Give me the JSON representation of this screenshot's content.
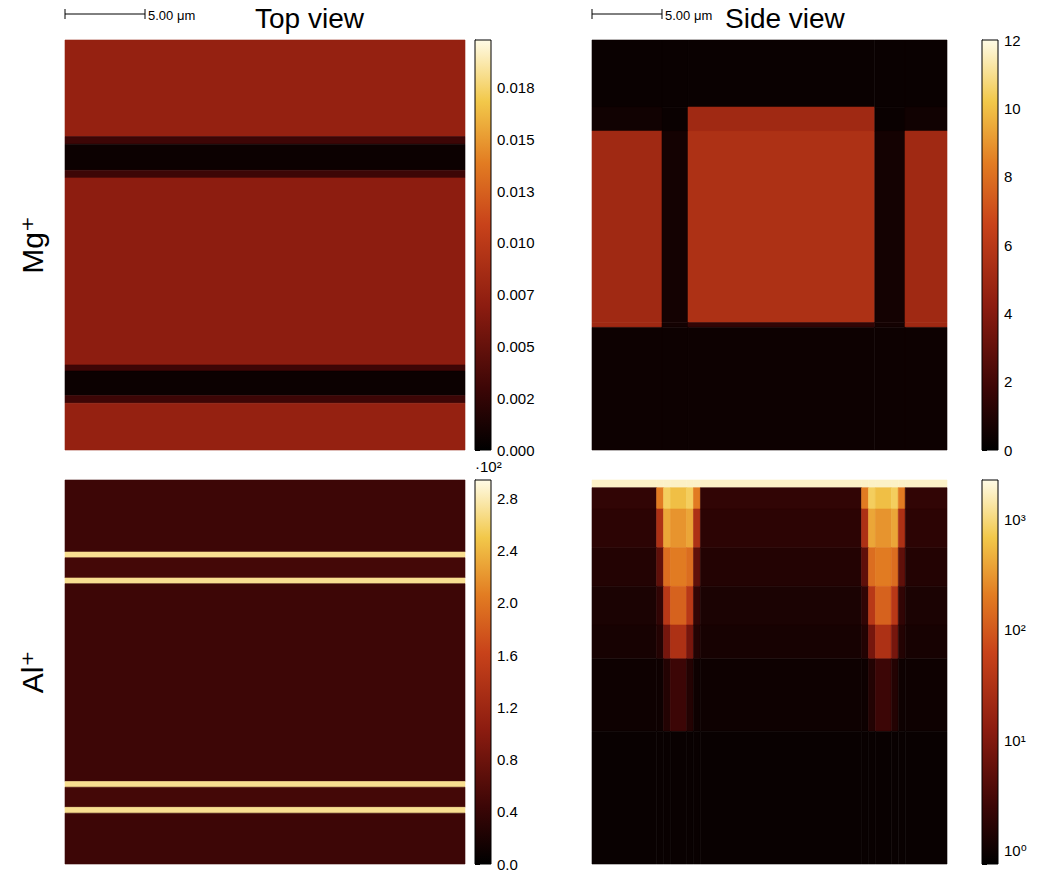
{
  "column_titles": [
    "Top view",
    "Side view"
  ],
  "row_titles": [
    "Mg⁺",
    "Al⁺"
  ],
  "scale_bar": {
    "label": "5.00 μm",
    "length": 5
  },
  "chart_data": [
    {
      "type": "heatmap",
      "tick_labels": false,
      "xlim": [
        0,
        25
      ],
      "ylim": [
        0,
        26.75
      ],
      "x_edges": [
        0,
        25
      ],
      "y_edges": [
        0,
        6.3,
        6.8,
        8.5,
        9.0,
        21.2,
        21.6,
        23.2,
        23.7,
        26.75
      ],
      "values": [
        [
          0.0075
        ],
        [
          0.003
        ],
        [
          0.0006
        ],
        [
          0.003
        ],
        [
          0.007
        ],
        [
          0.003
        ],
        [
          0.0006
        ],
        [
          0.003
        ],
        [
          0.0075
        ]
      ],
      "colorbar": {
        "range": [
          0,
          0.0198
        ],
        "ticks": [
          {
            "value": 0,
            "label": "0.000"
          },
          {
            "value": 0.0025,
            "label": "0.002"
          },
          {
            "value": 0.005,
            "label": "0.005"
          },
          {
            "value": 0.0075,
            "label": "0.007"
          },
          {
            "value": 0.01,
            "label": "0.010"
          },
          {
            "value": 0.0125,
            "label": "0.013"
          },
          {
            "value": 0.015,
            "label": "0.015"
          },
          {
            "value": 0.0175,
            "label": "0.018"
          }
        ]
      }
    },
    {
      "type": "heatmap",
      "tick_labels": false,
      "xlim": [
        0,
        25.36
      ],
      "ylim": [
        0,
        30.57
      ],
      "x_edges": [
        0,
        5.0,
        6.86,
        20.2,
        22.36,
        25.36
      ],
      "y_edges": [
        0,
        5.0,
        6.79,
        21.07,
        21.43,
        30.57
      ],
      "values": [
        [
          0.3,
          0.3,
          0.3,
          0.3,
          0.3
        ],
        [
          0.5,
          0.3,
          5,
          0.3,
          0.5
        ],
        [
          5,
          0.6,
          5.5,
          0.6,
          5
        ],
        [
          5,
          0.6,
          1.5,
          0.6,
          5
        ],
        [
          0.4,
          0.4,
          0.4,
          0.4,
          0.4
        ]
      ],
      "colorbar": {
        "range": [
          0,
          12
        ],
        "ticks": [
          0,
          2,
          4,
          6,
          8,
          10,
          12
        ]
      }
    },
    {
      "type": "heatmap",
      "tick_labels": false,
      "xlim": [
        0,
        25
      ],
      "ylim": [
        0,
        25
      ],
      "x_edges": [
        0,
        25
      ],
      "y_edges": [
        0,
        4.69,
        5.06,
        6.38,
        6.75,
        19.63,
        20.0,
        21.31,
        21.69,
        25
      ],
      "values": [
        [
          45
        ],
        [
          270
        ],
        [
          50
        ],
        [
          270
        ],
        [
          45
        ],
        [
          270
        ],
        [
          50
        ],
        [
          270
        ],
        [
          45
        ]
      ],
      "colorbar": {
        "range": [
          0,
          294
        ],
        "multiplier": "·10²",
        "ticks": [
          {
            "value": 0,
            "label": "0.0"
          },
          {
            "value": 40,
            "label": "0.4"
          },
          {
            "value": 80,
            "label": "0.8"
          },
          {
            "value": 120,
            "label": "1.2"
          },
          {
            "value": 160,
            "label": "1.6"
          },
          {
            "value": 200,
            "label": "2.0"
          },
          {
            "value": 240,
            "label": "2.4"
          },
          {
            "value": 280,
            "label": "2.8"
          }
        ]
      }
    },
    {
      "type": "heatmap",
      "tick_labels": false,
      "log": true,
      "xlim": [
        0,
        25.5
      ],
      "ylim": [
        0,
        28.36
      ],
      "x_edges": [
        0,
        4.64,
        5.14,
        5.64,
        6.79,
        7.29,
        7.79,
        19.36,
        19.86,
        20.36,
        21.5,
        22.0,
        22.5,
        25.5
      ],
      "y_edges": [
        0,
        0.57,
        2.14,
        5.0,
        7.86,
        10.71,
        13.21,
        18.57,
        28.36
      ],
      "values": [
        [
          1800,
          1800,
          1800,
          1800,
          1800,
          1800,
          1800,
          1800,
          1800,
          1800,
          1800,
          1800,
          1800
        ],
        [
          2,
          200,
          800,
          600,
          800,
          200,
          2,
          200,
          800,
          600,
          800,
          200,
          2
        ],
        [
          1.8,
          30,
          400,
          300,
          400,
          30,
          1.8,
          30,
          400,
          300,
          400,
          30,
          1.8
        ],
        [
          1.5,
          5,
          150,
          200,
          150,
          5,
          1.5,
          5,
          150,
          200,
          150,
          5,
          1.5
        ],
        [
          1.3,
          2,
          40,
          120,
          40,
          2,
          1.3,
          2,
          40,
          120,
          40,
          2,
          1.3
        ],
        [
          1.2,
          1.5,
          8,
          30,
          8,
          1.5,
          1.2,
          1.5,
          8,
          30,
          8,
          1.5,
          1.2
        ],
        [
          1,
          1,
          1.5,
          2.5,
          1.5,
          1,
          1,
          1,
          1.5,
          2.5,
          1.5,
          1,
          1
        ],
        [
          0.9,
          0.9,
          0.9,
          0.9,
          0.9,
          0.9,
          0.9,
          0.9,
          0.9,
          0.9,
          0.9,
          0.9,
          0.9
        ]
      ],
      "colorbar": {
        "range": [
          0.75,
          2290
        ],
        "ticks": [
          {
            "value": 1,
            "label": "10⁰"
          },
          {
            "value": 10,
            "label": "10¹"
          },
          {
            "value": 100,
            "label": "10²"
          },
          {
            "value": 1000,
            "label": "10³"
          }
        ]
      }
    }
  ]
}
